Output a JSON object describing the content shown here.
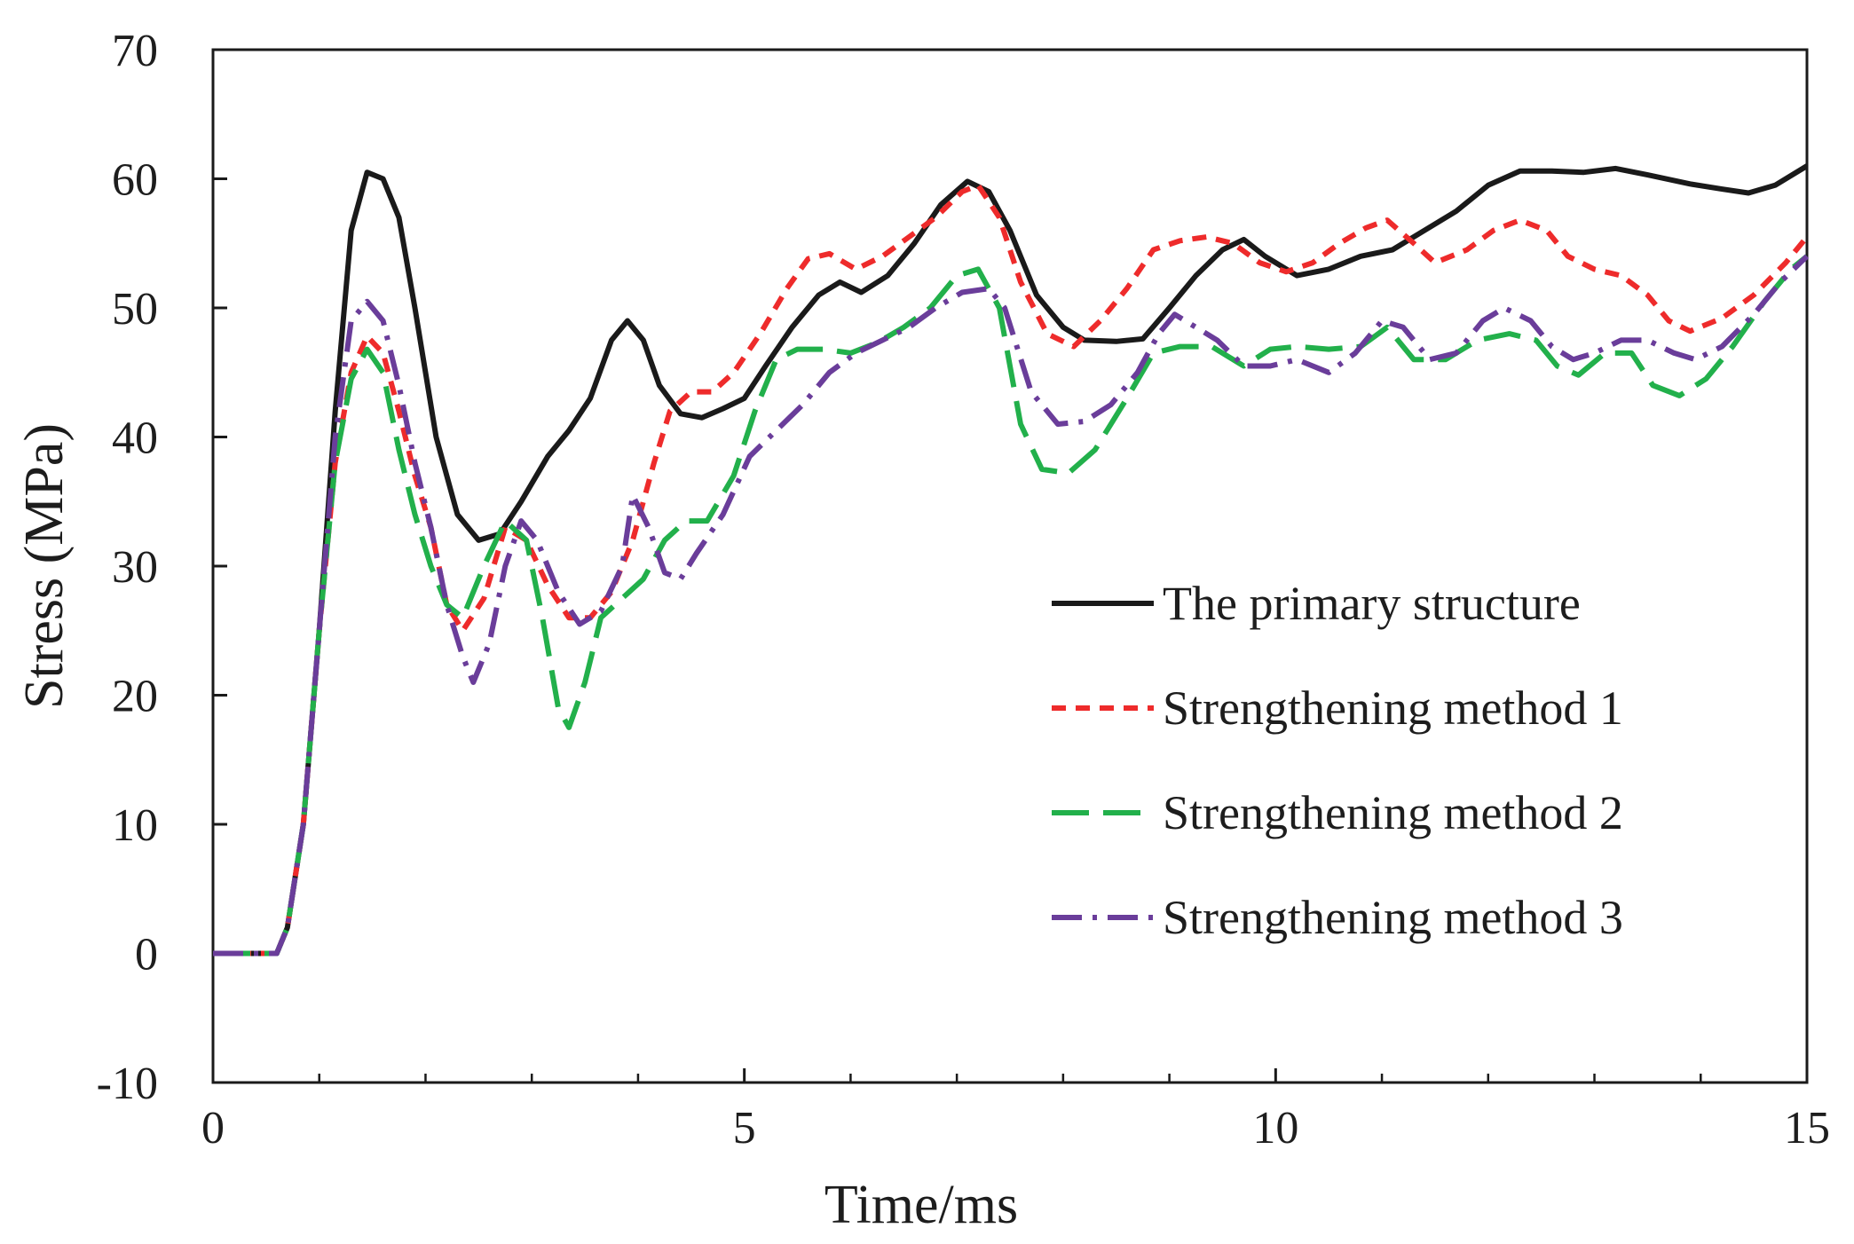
{
  "chart_data": {
    "type": "line",
    "title": "",
    "xlabel": "Time/ms",
    "ylabel": "Stress (MPa)",
    "xlim": [
      0,
      15
    ],
    "ylim": [
      -10,
      70
    ],
    "x_ticks": [
      0,
      5,
      10,
      15
    ],
    "x_minor_ticks": [
      1,
      2,
      3,
      4,
      6,
      7,
      8,
      9,
      11,
      12,
      13,
      14
    ],
    "y_ticks": [
      -10,
      0,
      10,
      20,
      30,
      40,
      50,
      60,
      70
    ],
    "legend_position": "center-right",
    "grid": false,
    "series": [
      {
        "name": "The primary structure",
        "color": "#1a1a1a",
        "style": "solid",
        "points": [
          [
            0,
            0
          ],
          [
            0.6,
            0
          ],
          [
            0.7,
            2
          ],
          [
            0.85,
            10
          ],
          [
            1.0,
            25
          ],
          [
            1.15,
            42
          ],
          [
            1.3,
            56
          ],
          [
            1.45,
            60.5
          ],
          [
            1.6,
            60
          ],
          [
            1.75,
            57
          ],
          [
            1.9,
            50
          ],
          [
            2.1,
            40
          ],
          [
            2.3,
            34
          ],
          [
            2.5,
            32
          ],
          [
            2.7,
            32.5
          ],
          [
            2.9,
            35
          ],
          [
            3.15,
            38.5
          ],
          [
            3.35,
            40.5
          ],
          [
            3.55,
            43
          ],
          [
            3.75,
            47.5
          ],
          [
            3.9,
            49
          ],
          [
            4.05,
            47.5
          ],
          [
            4.2,
            44
          ],
          [
            4.4,
            41.8
          ],
          [
            4.6,
            41.5
          ],
          [
            4.8,
            42.2
          ],
          [
            5.0,
            43
          ],
          [
            5.2,
            45.5
          ],
          [
            5.45,
            48.5
          ],
          [
            5.7,
            51
          ],
          [
            5.9,
            52
          ],
          [
            6.1,
            51.2
          ],
          [
            6.35,
            52.5
          ],
          [
            6.6,
            55
          ],
          [
            6.85,
            58
          ],
          [
            7.1,
            59.8
          ],
          [
            7.3,
            59
          ],
          [
            7.5,
            56
          ],
          [
            7.75,
            51
          ],
          [
            8.0,
            48.5
          ],
          [
            8.2,
            47.5
          ],
          [
            8.5,
            47.4
          ],
          [
            8.75,
            47.6
          ],
          [
            9.0,
            50
          ],
          [
            9.25,
            52.5
          ],
          [
            9.5,
            54.5
          ],
          [
            9.7,
            55.3
          ],
          [
            9.9,
            54
          ],
          [
            10.2,
            52.5
          ],
          [
            10.5,
            53
          ],
          [
            10.8,
            54
          ],
          [
            11.1,
            54.5
          ],
          [
            11.4,
            56
          ],
          [
            11.7,
            57.5
          ],
          [
            12.0,
            59.5
          ],
          [
            12.3,
            60.6
          ],
          [
            12.6,
            60.6
          ],
          [
            12.9,
            60.5
          ],
          [
            13.2,
            60.8
          ],
          [
            13.5,
            60.3
          ],
          [
            13.9,
            59.6
          ],
          [
            14.2,
            59.2
          ],
          [
            14.45,
            58.9
          ],
          [
            14.7,
            59.5
          ],
          [
            15.0,
            61
          ]
        ]
      },
      {
        "name": "Strengthening method 1",
        "color": "#ee2b2b",
        "style": "dashed",
        "points": [
          [
            0,
            0
          ],
          [
            0.6,
            0
          ],
          [
            0.7,
            2
          ],
          [
            0.85,
            10
          ],
          [
            1.0,
            25
          ],
          [
            1.15,
            38
          ],
          [
            1.3,
            45
          ],
          [
            1.45,
            47.8
          ],
          [
            1.6,
            46.5
          ],
          [
            1.75,
            42
          ],
          [
            1.9,
            37
          ],
          [
            2.05,
            33
          ],
          [
            2.2,
            27
          ],
          [
            2.35,
            25
          ],
          [
            2.55,
            27.5
          ],
          [
            2.75,
            33
          ],
          [
            2.95,
            32
          ],
          [
            3.15,
            28.5
          ],
          [
            3.35,
            26
          ],
          [
            3.55,
            26
          ],
          [
            3.75,
            28
          ],
          [
            3.95,
            32
          ],
          [
            4.15,
            38
          ],
          [
            4.3,
            42
          ],
          [
            4.5,
            43.5
          ],
          [
            4.7,
            43.5
          ],
          [
            4.9,
            45
          ],
          [
            5.15,
            48
          ],
          [
            5.4,
            51.5
          ],
          [
            5.6,
            53.8
          ],
          [
            5.8,
            54.2
          ],
          [
            6.05,
            53
          ],
          [
            6.3,
            54
          ],
          [
            6.55,
            55.5
          ],
          [
            6.8,
            57
          ],
          [
            7.05,
            59
          ],
          [
            7.2,
            59.5
          ],
          [
            7.4,
            57
          ],
          [
            7.6,
            52
          ],
          [
            7.85,
            48
          ],
          [
            8.1,
            47
          ],
          [
            8.35,
            49
          ],
          [
            8.6,
            51.5
          ],
          [
            8.85,
            54.5
          ],
          [
            9.1,
            55.2
          ],
          [
            9.35,
            55.5
          ],
          [
            9.6,
            55
          ],
          [
            9.85,
            53.5
          ],
          [
            10.1,
            52.8
          ],
          [
            10.35,
            53.5
          ],
          [
            10.6,
            55
          ],
          [
            10.85,
            56.2
          ],
          [
            11.05,
            56.8
          ],
          [
            11.3,
            55
          ],
          [
            11.5,
            53.5
          ],
          [
            11.8,
            54.5
          ],
          [
            12.05,
            56
          ],
          [
            12.3,
            56.8
          ],
          [
            12.55,
            56
          ],
          [
            12.75,
            54
          ],
          [
            13.0,
            53
          ],
          [
            13.25,
            52.5
          ],
          [
            13.5,
            51
          ],
          [
            13.7,
            49
          ],
          [
            13.9,
            48.2
          ],
          [
            14.2,
            49.2
          ],
          [
            14.5,
            51
          ],
          [
            14.8,
            53.5
          ],
          [
            15.0,
            55.5
          ]
        ]
      },
      {
        "name": "Strengthening method 2",
        "color": "#22b04b",
        "style": "longdash",
        "points": [
          [
            0,
            0
          ],
          [
            0.6,
            0
          ],
          [
            0.7,
            2
          ],
          [
            0.85,
            10
          ],
          [
            1.0,
            25
          ],
          [
            1.15,
            38
          ],
          [
            1.3,
            44.5
          ],
          [
            1.45,
            46.8
          ],
          [
            1.6,
            45
          ],
          [
            1.75,
            39
          ],
          [
            1.9,
            34
          ],
          [
            2.05,
            30
          ],
          [
            2.2,
            27
          ],
          [
            2.35,
            26
          ],
          [
            2.55,
            30
          ],
          [
            2.75,
            33.5
          ],
          [
            2.95,
            32
          ],
          [
            3.1,
            26
          ],
          [
            3.25,
            19
          ],
          [
            3.35,
            17.5
          ],
          [
            3.5,
            21
          ],
          [
            3.65,
            26
          ],
          [
            3.85,
            27.5
          ],
          [
            4.05,
            29
          ],
          [
            4.25,
            32
          ],
          [
            4.45,
            33.5
          ],
          [
            4.65,
            33.5
          ],
          [
            4.9,
            37
          ],
          [
            5.1,
            42
          ],
          [
            5.3,
            46
          ],
          [
            5.5,
            46.8
          ],
          [
            5.75,
            46.8
          ],
          [
            6.0,
            46.5
          ],
          [
            6.25,
            47.3
          ],
          [
            6.5,
            48.5
          ],
          [
            6.75,
            50
          ],
          [
            7.0,
            52.5
          ],
          [
            7.2,
            53
          ],
          [
            7.4,
            50
          ],
          [
            7.6,
            41
          ],
          [
            7.8,
            37.5
          ],
          [
            8.05,
            37.2
          ],
          [
            8.3,
            39
          ],
          [
            8.6,
            43
          ],
          [
            8.85,
            46.5
          ],
          [
            9.1,
            47
          ],
          [
            9.4,
            47
          ],
          [
            9.7,
            45.5
          ],
          [
            9.95,
            46.8
          ],
          [
            10.2,
            47
          ],
          [
            10.5,
            46.8
          ],
          [
            10.8,
            47
          ],
          [
            11.05,
            48.5
          ],
          [
            11.3,
            46
          ],
          [
            11.6,
            46
          ],
          [
            11.9,
            47.5
          ],
          [
            12.2,
            48
          ],
          [
            12.45,
            47.5
          ],
          [
            12.65,
            45.5
          ],
          [
            12.85,
            44.8
          ],
          [
            13.1,
            46.5
          ],
          [
            13.35,
            46.5
          ],
          [
            13.55,
            44
          ],
          [
            13.8,
            43.2
          ],
          [
            14.05,
            44.5
          ],
          [
            14.3,
            47
          ],
          [
            14.6,
            50.5
          ],
          [
            14.85,
            53
          ],
          [
            15.0,
            54
          ]
        ]
      },
      {
        "name": "Strengthening method 3",
        "color": "#6a3d9a",
        "style": "dashdot",
        "points": [
          [
            0,
            0
          ],
          [
            0.6,
            0
          ],
          [
            0.7,
            2
          ],
          [
            0.85,
            10
          ],
          [
            1.0,
            25
          ],
          [
            1.15,
            40
          ],
          [
            1.3,
            49
          ],
          [
            1.45,
            50.5
          ],
          [
            1.6,
            49
          ],
          [
            1.75,
            44
          ],
          [
            1.9,
            38
          ],
          [
            2.05,
            33
          ],
          [
            2.2,
            27
          ],
          [
            2.35,
            23
          ],
          [
            2.45,
            21
          ],
          [
            2.6,
            24
          ],
          [
            2.75,
            30
          ],
          [
            2.9,
            33.5
          ],
          [
            3.05,
            32
          ],
          [
            3.25,
            28
          ],
          [
            3.45,
            25.5
          ],
          [
            3.65,
            26.5
          ],
          [
            3.85,
            30
          ],
          [
            3.95,
            35.5
          ],
          [
            4.1,
            33
          ],
          [
            4.25,
            29.5
          ],
          [
            4.4,
            29
          ],
          [
            4.55,
            31
          ],
          [
            4.8,
            34
          ],
          [
            5.05,
            38.5
          ],
          [
            5.3,
            40.5
          ],
          [
            5.55,
            42.5
          ],
          [
            5.8,
            45
          ],
          [
            6.05,
            46.5
          ],
          [
            6.3,
            47.5
          ],
          [
            6.55,
            48.5
          ],
          [
            6.8,
            50
          ],
          [
            7.05,
            51.2
          ],
          [
            7.3,
            51.5
          ],
          [
            7.45,
            50
          ],
          [
            7.7,
            43.5
          ],
          [
            7.95,
            41
          ],
          [
            8.2,
            41.2
          ],
          [
            8.45,
            42.5
          ],
          [
            8.7,
            45
          ],
          [
            8.9,
            48
          ],
          [
            9.05,
            49.5
          ],
          [
            9.25,
            48.5
          ],
          [
            9.45,
            47.5
          ],
          [
            9.7,
            45.5
          ],
          [
            9.95,
            45.5
          ],
          [
            10.2,
            46
          ],
          [
            10.5,
            45
          ],
          [
            10.75,
            46.5
          ],
          [
            11.0,
            49
          ],
          [
            11.2,
            48.5
          ],
          [
            11.45,
            46
          ],
          [
            11.7,
            46.5
          ],
          [
            11.95,
            49
          ],
          [
            12.15,
            50
          ],
          [
            12.4,
            49
          ],
          [
            12.6,
            47
          ],
          [
            12.8,
            46
          ],
          [
            13.0,
            46.5
          ],
          [
            13.25,
            47.5
          ],
          [
            13.5,
            47.5
          ],
          [
            13.75,
            46.5
          ],
          [
            13.95,
            46
          ],
          [
            14.2,
            47
          ],
          [
            14.5,
            49.5
          ],
          [
            14.75,
            52
          ],
          [
            15.0,
            54
          ]
        ]
      }
    ]
  }
}
